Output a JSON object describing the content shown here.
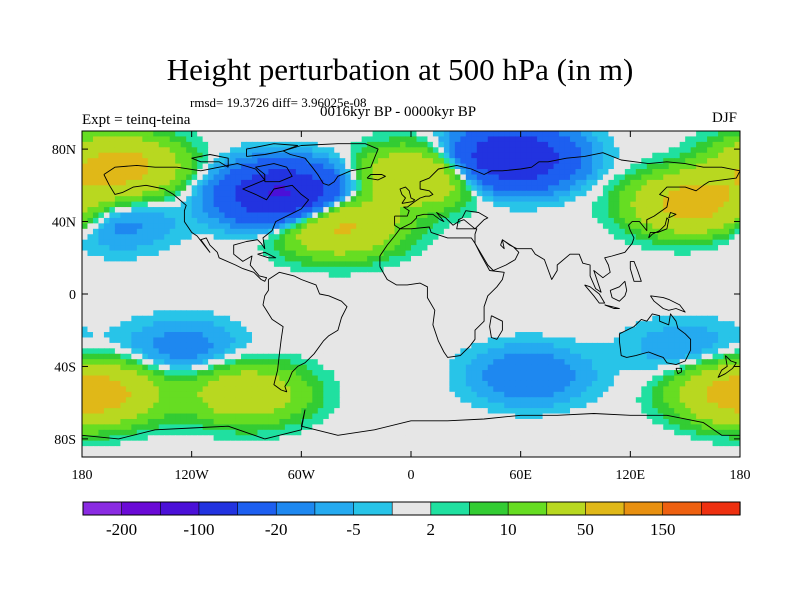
{
  "title": "Height perturbation at 500 hPa (in m)",
  "stats": "rmsd= 19.3726 diff= 3.96025e-08",
  "experiment": "Expt = teinq-teina",
  "period": "0016kyr BP - 0000kyr BP",
  "season": "DJF",
  "chart_data": {
    "type": "heatmap",
    "title": "Height perturbation at 500 hPa (in m)",
    "xlabel": "",
    "ylabel": "",
    "xlim": [
      -180,
      180
    ],
    "ylim": [
      -90,
      90
    ],
    "x_ticks": [
      {
        "value": -180,
        "label": "180"
      },
      {
        "value": -120,
        "label": "120W"
      },
      {
        "value": -60,
        "label": "60W"
      },
      {
        "value": 0,
        "label": "0"
      },
      {
        "value": 60,
        "label": "60E"
      },
      {
        "value": 120,
        "label": "120E"
      },
      {
        "value": 180,
        "label": "180"
      }
    ],
    "y_ticks": [
      {
        "value": 80,
        "label": "80N"
      },
      {
        "value": 40,
        "label": "40N"
      },
      {
        "value": 0,
        "label": "0"
      },
      {
        "value": -40,
        "label": "40S"
      },
      {
        "value": -80,
        "label": "80S"
      }
    ],
    "levels": [
      -200,
      -150,
      -100,
      -50,
      -20,
      -10,
      -5,
      -2,
      2,
      5,
      10,
      20,
      50,
      100,
      150,
      200
    ],
    "colorbar_labels": [
      {
        "level": -200,
        "label": "-200"
      },
      {
        "level": -100,
        "label": "-100"
      },
      {
        "level": -20,
        "label": "-20"
      },
      {
        "level": -5,
        "label": "-5"
      },
      {
        "level": 2,
        "label": "2"
      },
      {
        "level": 10,
        "label": "10"
      },
      {
        "level": 50,
        "label": "50"
      },
      {
        "level": 150,
        "label": "150"
      }
    ],
    "colors": [
      "#8a2be2",
      "#6a0ad6",
      "#4b10d8",
      "#2233e0",
      "#1d5ff0",
      "#1e88f0",
      "#25aaf0",
      "#28c4e8",
      "#e6e6e6",
      "#20e0a0",
      "#33cc33",
      "#66dd22",
      "#b8d820",
      "#e0b818",
      "#e89010",
      "#ee6010",
      "#ee3010"
    ],
    "features": [
      {
        "name": "negative anomaly",
        "lon": -70,
        "lat": 55,
        "value": -110
      },
      {
        "name": "negative anomaly",
        "lon": 55,
        "lat": 75,
        "value": -100
      },
      {
        "name": "positive anomaly",
        "lon": -40,
        "lat": 38,
        "value": 60
      },
      {
        "name": "positive anomaly",
        "lon": 155,
        "lat": 50,
        "value": 70
      },
      {
        "name": "positive anomaly",
        "lon": -160,
        "lat": 70,
        "value": 70
      },
      {
        "name": "positive anomaly",
        "lon": 5,
        "lat": 65,
        "value": 50
      },
      {
        "name": "negative anomaly",
        "lon": -162,
        "lat": 40,
        "value": -15
      },
      {
        "name": "negative anomaly",
        "lon": -125,
        "lat": -30,
        "value": -15
      },
      {
        "name": "negative anomaly",
        "lon": 65,
        "lat": -45,
        "value": -20
      },
      {
        "name": "negative anomaly",
        "lon": 150,
        "lat": -30,
        "value": -10
      },
      {
        "name": "positive anomaly",
        "lon": -170,
        "lat": -55,
        "value": 50
      },
      {
        "name": "positive anomaly",
        "lon": -90,
        "lat": -55,
        "value": 40
      },
      {
        "name": "positive anomaly",
        "lon": 175,
        "lat": -55,
        "value": 35
      }
    ]
  }
}
